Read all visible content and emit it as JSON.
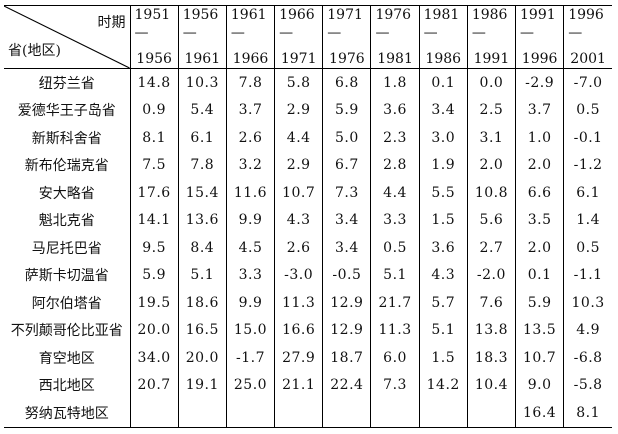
{
  "header": {
    "corner_top": "时期",
    "corner_bottom": "省(地区)",
    "periods": [
      {
        "from": "1951—",
        "to": "1956"
      },
      {
        "from": "1956—",
        "to": "1961"
      },
      {
        "from": "1961—",
        "to": "1966"
      },
      {
        "from": "1966—",
        "to": "1971"
      },
      {
        "from": "1971—",
        "to": "1976"
      },
      {
        "from": "1976—",
        "to": "1981"
      },
      {
        "from": "1981—",
        "to": "1986"
      },
      {
        "from": "1986—",
        "to": "1991"
      },
      {
        "from": "1991—",
        "to": "1996"
      },
      {
        "from": "1996—",
        "to": "2001"
      }
    ]
  },
  "rows": [
    {
      "name": "纽芬兰省",
      "values": [
        "14.8",
        "10.3",
        "7.8",
        "5.8",
        "6.8",
        "1.8",
        "0.1",
        "0.0",
        "-2.9",
        "-7.0"
      ]
    },
    {
      "name": "爱德华王子岛省",
      "values": [
        "0.9",
        "5.4",
        "3.7",
        "2.9",
        "5.9",
        "3.6",
        "3.4",
        "2.5",
        "3.7",
        "0.5"
      ]
    },
    {
      "name": "新斯科舍省",
      "values": [
        "8.1",
        "6.1",
        "2.6",
        "4.4",
        "5.0",
        "2.3",
        "3.0",
        "3.1",
        "1.0",
        "-0.1"
      ]
    },
    {
      "name": "新布伦瑞克省",
      "values": [
        "7.5",
        "7.8",
        "3.2",
        "2.9",
        "6.7",
        "2.8",
        "1.9",
        "2.0",
        "2.0",
        "-1.2"
      ]
    },
    {
      "name": "安大略省",
      "values": [
        "17.6",
        "15.4",
        "11.6",
        "10.7",
        "7.3",
        "4.4",
        "5.5",
        "10.8",
        "6.6",
        "6.1"
      ]
    },
    {
      "name": "魁北克省",
      "values": [
        "14.1",
        "13.6",
        "9.9",
        "4.3",
        "3.4",
        "3.3",
        "1.5",
        "5.6",
        "3.5",
        "1.4"
      ]
    },
    {
      "name": "马尼托巴省",
      "values": [
        "9.5",
        "8.4",
        "4.5",
        "2.6",
        "3.4",
        "0.5",
        "3.6",
        "2.7",
        "2.0",
        "0.5"
      ]
    },
    {
      "name": "萨斯卡切温省",
      "values": [
        "5.9",
        "5.1",
        "3.3",
        "-3.0",
        "-0.5",
        "5.1",
        "4.3",
        "-2.0",
        "0.1",
        "-1.1"
      ]
    },
    {
      "name": "阿尔伯塔省",
      "values": [
        "19.5",
        "18.6",
        "9.9",
        "11.3",
        "12.9",
        "21.7",
        "5.7",
        "7.6",
        "5.9",
        "10.3"
      ]
    },
    {
      "name": "不列颠哥伦比亚省",
      "values": [
        "20.0",
        "16.5",
        "15.0",
        "16.6",
        "12.9",
        "11.3",
        "5.1",
        "13.8",
        "13.5",
        "4.9"
      ]
    },
    {
      "name": "育空地区",
      "values": [
        "34.0",
        "20.0",
        "-1.7",
        "27.9",
        "18.7",
        "6.0",
        "1.5",
        "18.3",
        "10.7",
        "-6.8"
      ]
    },
    {
      "name": "西北地区",
      "values": [
        "20.7",
        "19.1",
        "25.0",
        "21.1",
        "22.4",
        "7.3",
        "14.2",
        "10.4",
        "9.0",
        "-5.8"
      ]
    },
    {
      "name": "努纳瓦特地区",
      "values": [
        "",
        "",
        "",
        "",
        "",
        "",
        "",
        "",
        "16.4",
        "8.1"
      ]
    }
  ]
}
